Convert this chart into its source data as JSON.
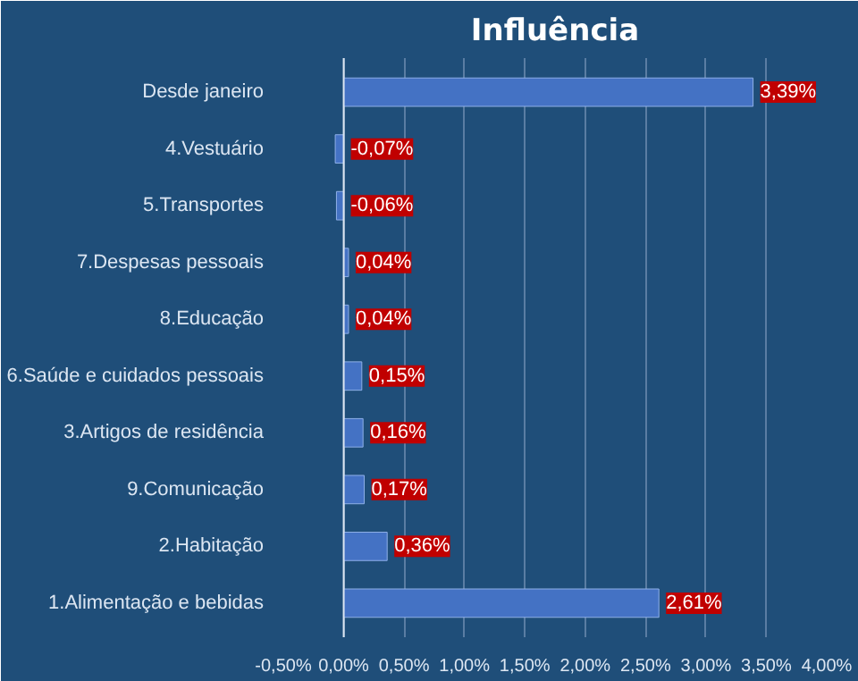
{
  "chart_data": {
    "type": "bar",
    "orientation": "horizontal",
    "title": "Influência",
    "categories": [
      "Desde janeiro",
      "4.Vestuário",
      "5.Transportes",
      "7.Despesas pessoais",
      "8.Educação",
      "6.Saúde e cuidados pessoais",
      "3.Artigos de residência",
      "9.Comunicação",
      "2.Habitação",
      "1.Alimentação e bebidas"
    ],
    "values": [
      3.39,
      -0.07,
      -0.06,
      0.04,
      0.04,
      0.15,
      0.16,
      0.17,
      0.36,
      2.61
    ],
    "value_labels": [
      "3,39%",
      "-0,07%",
      "-0,06%",
      "0,04%",
      "0,04%",
      "0,15%",
      "0,16%",
      "0,17%",
      "0,36%",
      "2,61%"
    ],
    "color": "#4472c4",
    "xlim": [
      -0.5,
      4.0
    ],
    "xticks": [
      {
        "value": -0.5,
        "label": "-0,50%"
      },
      {
        "value": 0,
        "label": "0,00%"
      },
      {
        "value": 0.5,
        "label": "0,50%"
      },
      {
        "value": 1.0,
        "label": "1,00%"
      },
      {
        "value": 1.5,
        "label": "1,50%"
      },
      {
        "value": 2.0,
        "label": "2,00%"
      },
      {
        "value": 2.5,
        "label": "2,50%"
      },
      {
        "value": 3.0,
        "label": "3,00%"
      },
      {
        "value": 3.5,
        "label": "3,50%"
      },
      {
        "value": 4.0,
        "label": "4,00%"
      }
    ],
    "grid": "x"
  }
}
